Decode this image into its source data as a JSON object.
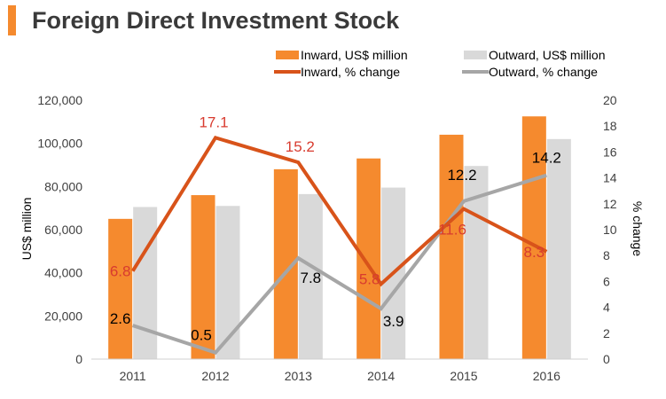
{
  "colors": {
    "accent": "#f58a2e",
    "inward_bar": "#f58a2e",
    "outward_bar": "#d9d9d9",
    "inward_line": "#d8531a",
    "outward_line": "#a6a6a6",
    "inward_label": "#d83b2f",
    "outward_label": "#000000",
    "axis_text": "#404040"
  },
  "chart_data": {
    "type": "bar",
    "title": "Foreign Direct Investment Stock",
    "categories": [
      "2011",
      "2012",
      "2013",
      "2014",
      "2015",
      "2016"
    ],
    "ylabel": "US$ million",
    "y2label": "% change",
    "ylim": [
      0,
      120000
    ],
    "y2lim": [
      0,
      20
    ],
    "yticks": [
      "0",
      "20,000",
      "40,000",
      "60,000",
      "80,000",
      "100,000",
      "120,000"
    ],
    "y2ticks": [
      "0",
      "2",
      "4",
      "6",
      "8",
      "10",
      "12",
      "14",
      "16",
      "18",
      "20"
    ],
    "legend_position": "top-right",
    "series": [
      {
        "name": "Inward, US$ million",
        "kind": "bar",
        "axis": "left",
        "values": [
          65000,
          76000,
          88000,
          93000,
          104000,
          112500
        ]
      },
      {
        "name": "Outward, US$ million",
        "kind": "bar",
        "axis": "left",
        "values": [
          70500,
          71000,
          76500,
          79500,
          89500,
          102000
        ]
      },
      {
        "name": "Inward, % change",
        "kind": "line",
        "axis": "right",
        "values": [
          6.8,
          17.1,
          15.2,
          5.8,
          11.6,
          8.3
        ],
        "labels": [
          "6.8",
          "17.1",
          "15.2",
          "5.8",
          "11.6",
          "8.3"
        ]
      },
      {
        "name": "Outward, % change",
        "kind": "line",
        "axis": "right",
        "values": [
          2.6,
          0.5,
          7.8,
          3.9,
          12.2,
          14.2
        ],
        "labels": [
          "2.6",
          "0.5",
          "7.8",
          "3.9",
          "12.2",
          "14.2"
        ]
      }
    ]
  }
}
